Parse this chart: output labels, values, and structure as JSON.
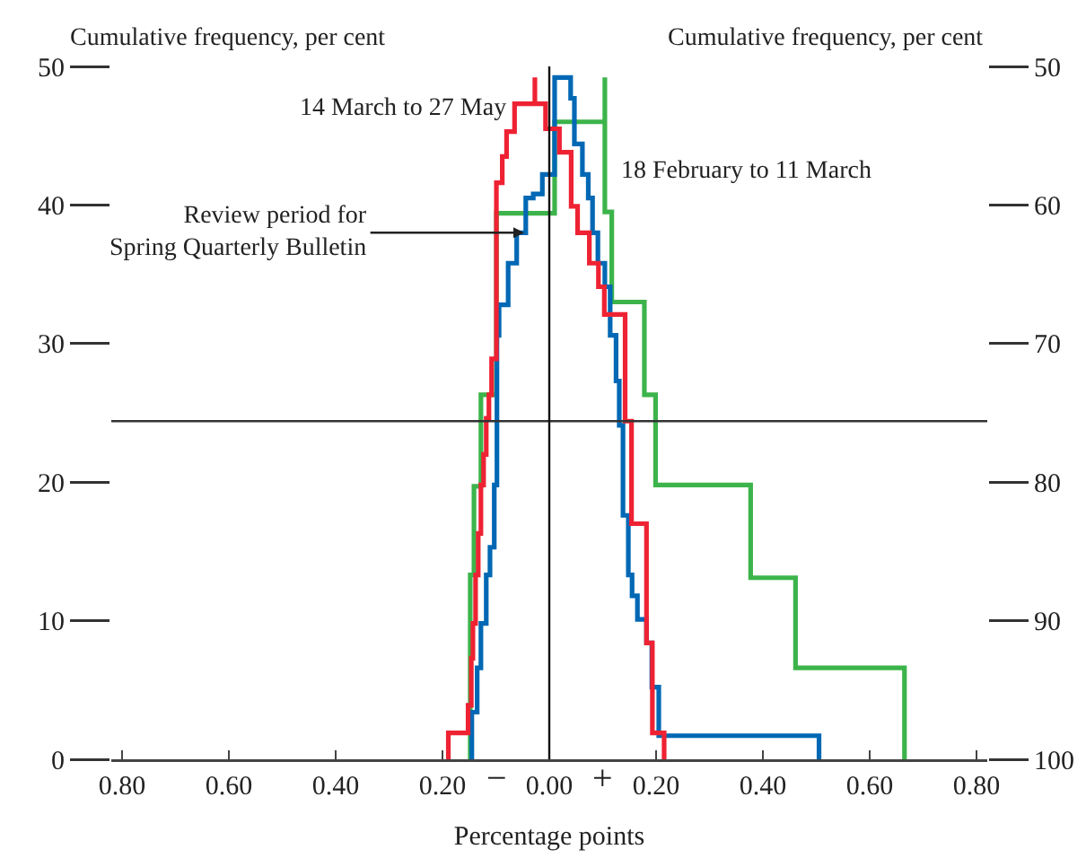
{
  "chart_data": {
    "type": "step",
    "xlabel": "Percentage points",
    "ylabel": "Cumulative frequency, per cent",
    "y2label": "Cumulative frequency, per cent",
    "xlim": [
      -0.82,
      0.82
    ],
    "xticks": [
      {
        "value": -0.8,
        "label": "0.80"
      },
      {
        "value": -0.6,
        "label": "0.60"
      },
      {
        "value": -0.4,
        "label": "0.40"
      },
      {
        "value": -0.2,
        "label": "0.20"
      },
      {
        "value": 0,
        "label": "0.00"
      },
      {
        "value": 0.2,
        "label": "0.20"
      },
      {
        "value": 0.4,
        "label": "0.40"
      },
      {
        "value": 0.6,
        "label": "0.60"
      },
      {
        "value": 0.8,
        "label": "0.80"
      }
    ],
    "ylim": [
      0,
      50
    ],
    "yticks": [
      0,
      10,
      20,
      30,
      40,
      50
    ],
    "y2lim": [
      100,
      50
    ],
    "y2ticks": [
      50,
      60,
      70,
      80,
      90,
      100
    ],
    "grid": false,
    "legend": false,
    "series": [
      {
        "name": "18 February to 11 March",
        "color": "#3cb44b",
        "x": [
          -0.148,
          -0.141,
          -0.128,
          -0.099,
          0.01,
          0.104,
          0.104,
          0.117,
          0.178,
          0.199,
          0.377,
          0.461,
          0.665,
          0.665
        ],
        "values": [
          0,
          13.3,
          19.7,
          26.3,
          39.4,
          46.0,
          49.2,
          39.5,
          33.0,
          26.3,
          19.8,
          13.1,
          6.6,
          0
        ]
      },
      {
        "color": "#0068b4",
        "x": [
          -0.145,
          -0.135,
          -0.128,
          -0.118,
          -0.111,
          -0.103,
          -0.098,
          -0.094,
          -0.077,
          -0.061,
          -0.044,
          -0.03,
          -0.013,
          0.01,
          0.01,
          0.04,
          0.047,
          0.062,
          0.073,
          0.081,
          0.091,
          0.104,
          0.114,
          0.125,
          0.131,
          0.138,
          0.148,
          0.155,
          0.165,
          0.182,
          0.192,
          0.205,
          0.256,
          0.505,
          0.505
        ],
        "values": [
          0,
          3.4,
          6.6,
          9.8,
          13.3,
          15.3,
          19.8,
          30.6,
          32.8,
          35.8,
          38.0,
          40.5,
          40.8,
          42.2,
          49.2,
          49.2,
          47.7,
          44.4,
          42.2,
          40.5,
          38.0,
          35.8,
          34.1,
          30.6,
          27.3,
          24.1,
          17.6,
          13.3,
          11.8,
          10.1,
          8.4,
          5.2,
          1.7,
          1.7,
          0
        ]
      },
      {
        "name": "14 March to 27 May",
        "color": "#ee2233",
        "x": [
          -0.189,
          -0.152,
          -0.146,
          -0.143,
          -0.138,
          -0.133,
          -0.128,
          -0.123,
          -0.118,
          -0.113,
          -0.108,
          -0.099,
          -0.088,
          -0.08,
          -0.065,
          -0.027,
          -0.027,
          -0.007,
          0.019,
          0.041,
          0.053,
          0.075,
          0.092,
          0.103,
          0.142,
          0.154,
          0.182,
          0.193,
          0.215,
          0.215
        ],
        "values": [
          0,
          1.9,
          3.9,
          7.3,
          9.8,
          13.3,
          16.3,
          19.8,
          22.0,
          24.6,
          26.3,
          28.9,
          41.6,
          43.5,
          45.3,
          47.3,
          49.2,
          47.3,
          45.5,
          43.8,
          39.9,
          38.0,
          35.8,
          34.1,
          32.1,
          24.4,
          17.0,
          8.4,
          1.9,
          0
        ]
      }
    ],
    "ref_lines": [
      {
        "axis": "y",
        "value": 24.4,
        "color": "#333333"
      },
      {
        "axis": "x",
        "value": 0,
        "color": "#111111"
      }
    ],
    "annotations": [
      {
        "text": "Review period for\nSpring Quarterly Bulletin",
        "x": -0.047,
        "y": 38.0
      },
      "−",
      "+"
    ]
  }
}
